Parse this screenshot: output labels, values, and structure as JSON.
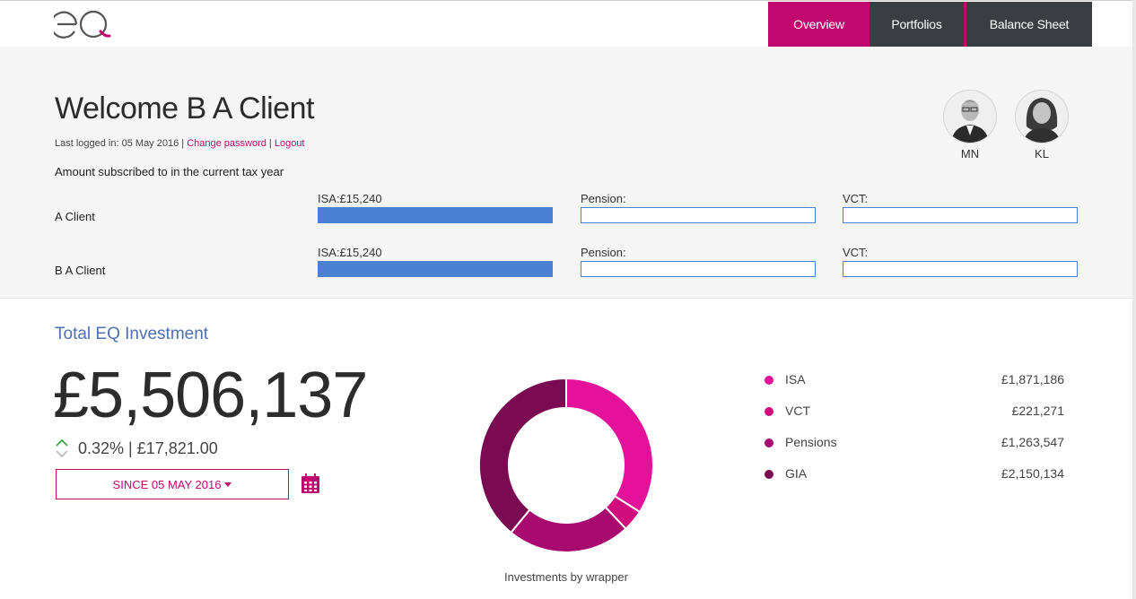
{
  "brand": {
    "accent": "#c0086f",
    "nav_dark": "#3a3d42",
    "bar_blue": "#4a80d0",
    "title_blue": "#4e6fb1",
    "logo_icon": "eq-logo"
  },
  "nav": {
    "items": [
      {
        "label": "Overview",
        "active": true
      },
      {
        "label": "Portfolios",
        "active": false
      },
      {
        "label": "Balance Sheet",
        "active": false
      }
    ]
  },
  "welcome": {
    "title": "Welcome B A Client",
    "last_logged_prefix": "Last logged in: 05 May 2016 |",
    "change_password": "Change password",
    "separator": "|",
    "logout": "Logout",
    "amount_subscribed": "Amount subscribed to in the current tax year"
  },
  "subscriptions": [
    {
      "client": "A Client",
      "isa_label": "ISA:£15,240",
      "isa_fill": 1.0,
      "pension_label": "Pension:",
      "pension_fill": 0,
      "vct_label": "VCT:",
      "vct_fill": 0
    },
    {
      "client": "B A Client",
      "isa_label": "ISA:£15,240",
      "isa_fill": 1.0,
      "pension_label": "Pension:",
      "pension_fill": 0,
      "vct_label": "VCT:",
      "vct_fill": 0
    }
  ],
  "advisors": [
    {
      "initials": "MN",
      "icon": "advisor-photo"
    },
    {
      "initials": "KL",
      "icon": "advisor-photo"
    }
  ],
  "investment": {
    "section_title": "Total EQ Investment",
    "total": "£5,506,137",
    "change": "0.32% | £17,821.00",
    "change_icon": "up-down-chevron-icon",
    "since_button": "SINCE 05 MAY 2016",
    "calendar_icon": "calendar-icon"
  },
  "chart_data": {
    "type": "pie",
    "caption": "Investments by wrapper",
    "categories": [
      "ISA",
      "VCT",
      "Pensions",
      "GIA"
    ],
    "values": [
      1871186,
      221271,
      1263547,
      2150134
    ],
    "display_values": [
      "£1,871,186",
      "£221,271",
      "£1,263,547",
      "£2,150,134"
    ],
    "colors": [
      "#e4129b",
      "#d10d7e",
      "#a80a6f",
      "#7a0a52"
    ],
    "legend_placement": "right"
  }
}
